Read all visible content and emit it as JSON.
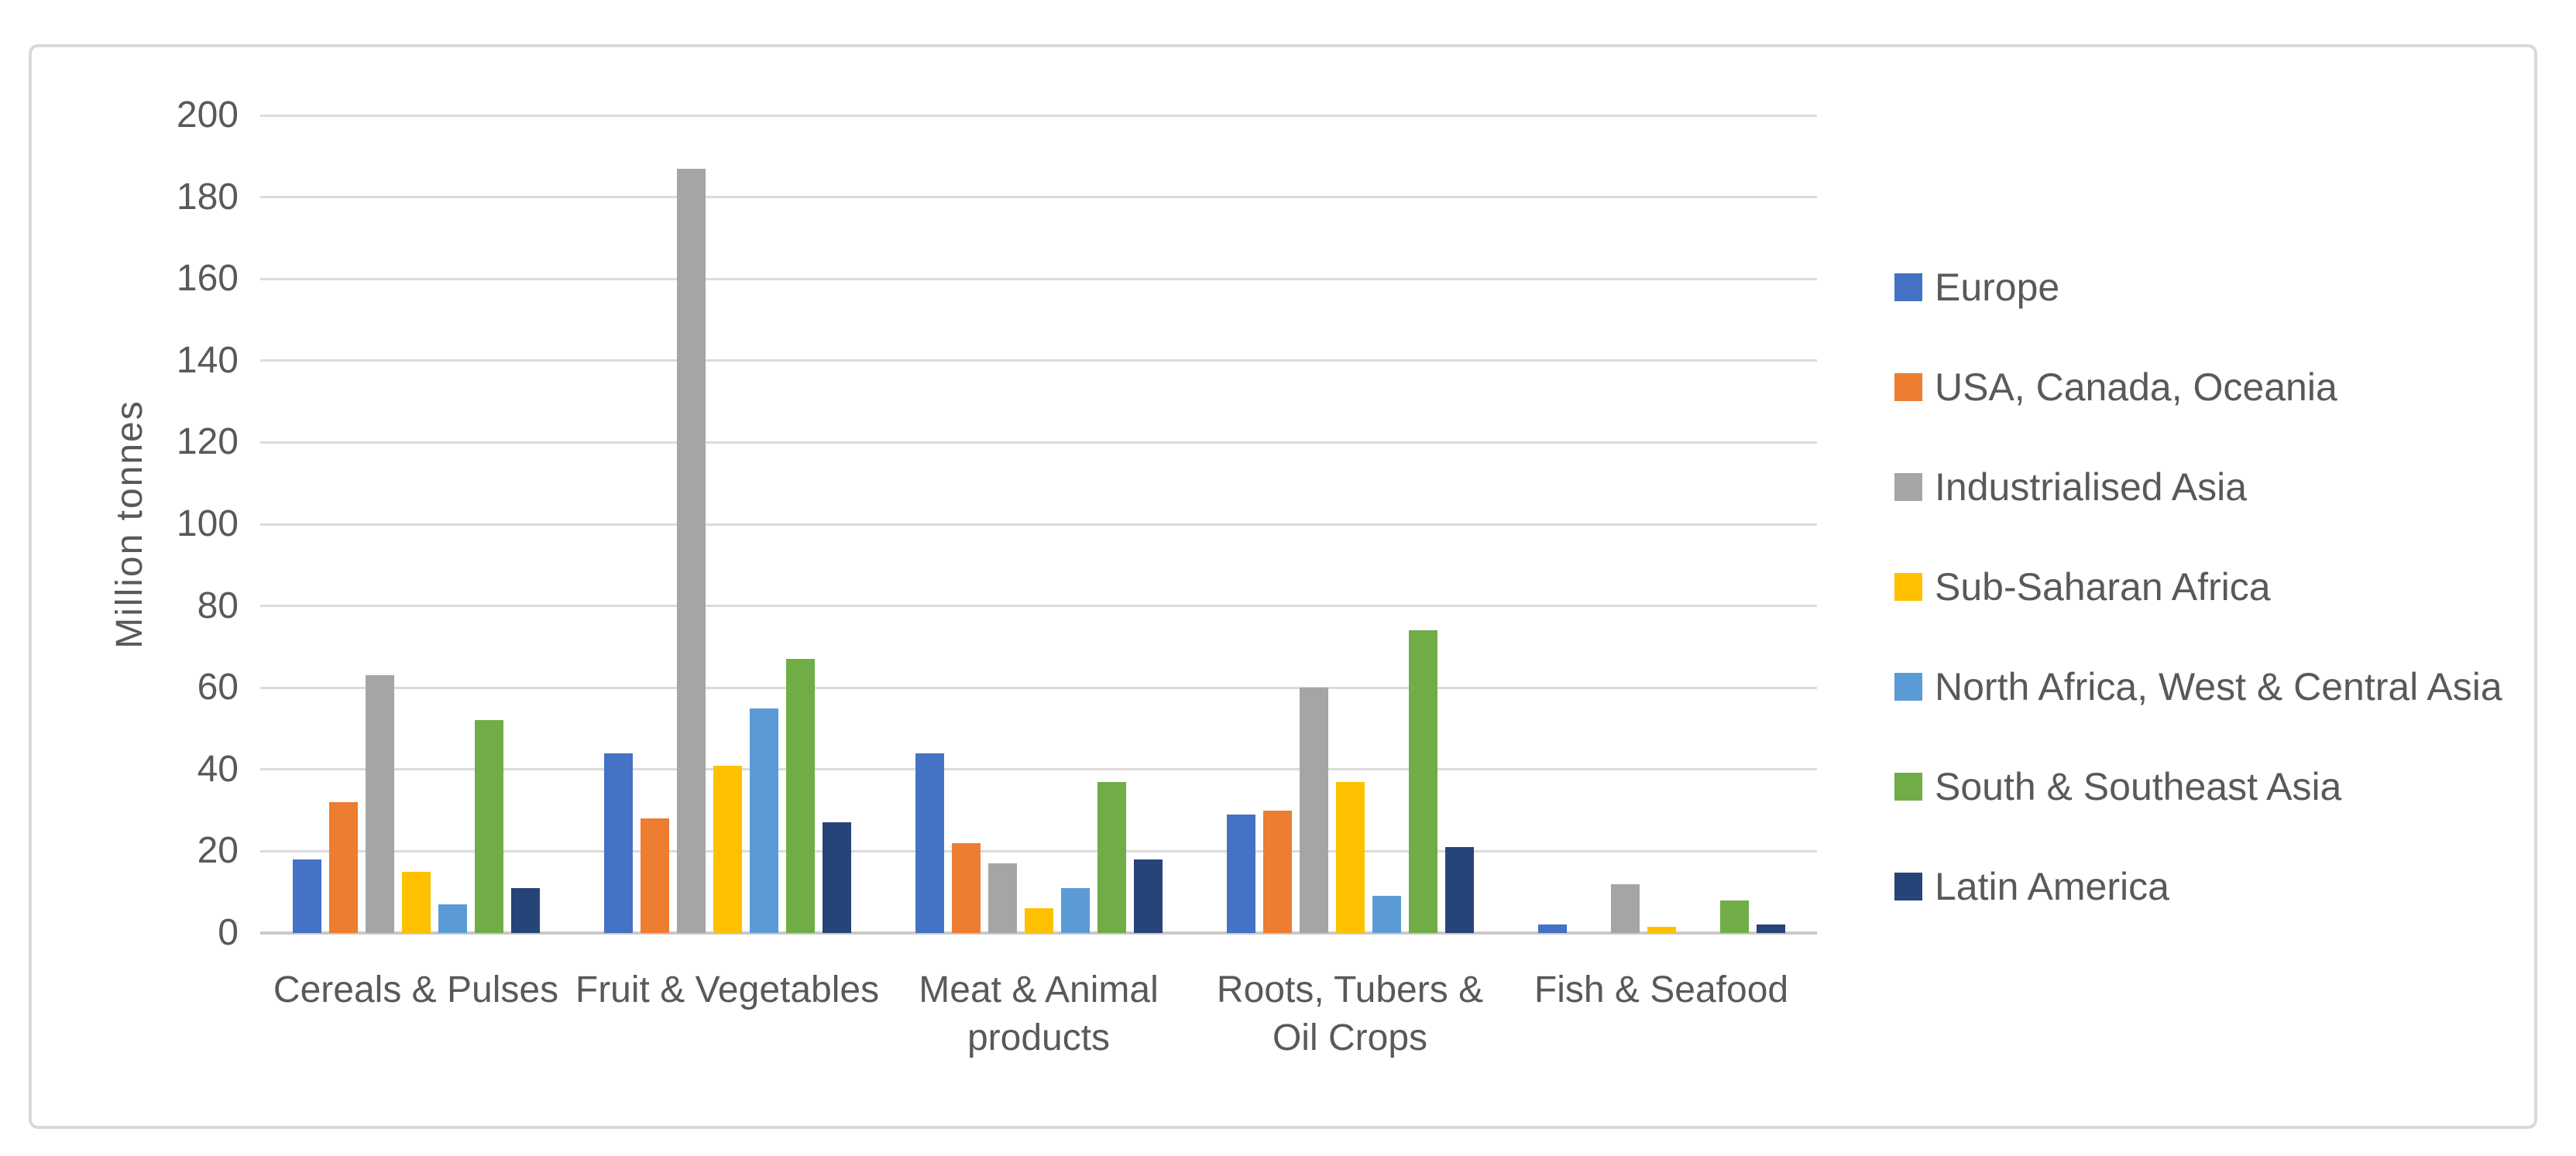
{
  "chart_data": {
    "type": "bar",
    "title": "",
    "xlabel": "",
    "ylabel": "Million tonnes",
    "ylim": [
      0,
      200
    ],
    "ytick_step": 20,
    "yticks": [
      0,
      20,
      40,
      60,
      80,
      100,
      120,
      140,
      160,
      180,
      200
    ],
    "grid": true,
    "legend_position": "right",
    "categories": [
      "Cereals & Pulses",
      "Fruit & Vegetables",
      "Meat & Animal products",
      "Roots, Tubers & Oil Crops",
      "Fish & Seafood"
    ],
    "category_label_lines": [
      [
        "Cereals & Pulses"
      ],
      [
        "Fruit & Vegetables"
      ],
      [
        "Meat & Animal",
        "products"
      ],
      [
        "Roots, Tubers &",
        "Oil Crops"
      ],
      [
        "Fish & Seafood"
      ]
    ],
    "series": [
      {
        "name": "Europe",
        "color": "#4472C4",
        "values": [
          18,
          44,
          44,
          29,
          2
        ]
      },
      {
        "name": "USA, Canada, Oceania",
        "color": "#ED7D31",
        "values": [
          32,
          28,
          22,
          30,
          0
        ]
      },
      {
        "name": "Industrialised Asia",
        "color": "#A5A5A5",
        "values": [
          63,
          187,
          17,
          60,
          12
        ]
      },
      {
        "name": "Sub-Saharan Africa",
        "color": "#FFC000",
        "values": [
          15,
          41,
          6,
          37,
          1.5
        ]
      },
      {
        "name": "North Africa, West & Central Asia",
        "color": "#5B9BD5",
        "values": [
          7,
          55,
          11,
          9,
          0
        ]
      },
      {
        "name": "South & Southeast Asia",
        "color": "#70AD47",
        "values": [
          52,
          67,
          37,
          74,
          8
        ]
      },
      {
        "name": "Latin America",
        "color": "#264478",
        "values": [
          11,
          27,
          18,
          21,
          2
        ]
      }
    ],
    "colors": {
      "grid": "#DBDBDB",
      "axis_line": "#C9C9C9",
      "text": "#595959",
      "frame_border": "#D9D9D9"
    }
  }
}
